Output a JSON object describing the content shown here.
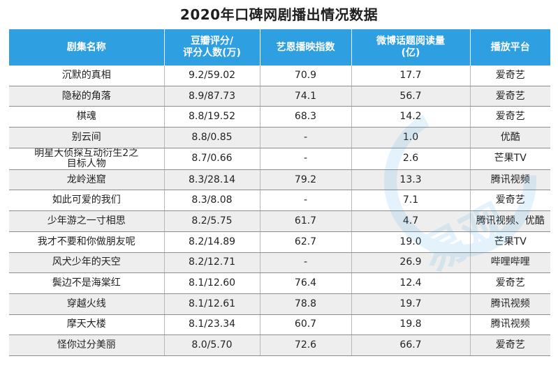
{
  "title": "2020年口碑网剧播出情况数据",
  "columns": [
    {
      "line1": "剧集名称",
      "line2": ""
    },
    {
      "line1": "豆瓣评分/",
      "line2": "评分人数(万)"
    },
    {
      "line1": "艺恩播映指数",
      "line2": ""
    },
    {
      "line1": "微博话题阅读量",
      "line2": "(亿)"
    },
    {
      "line1": "播放平台",
      "line2": ""
    }
  ],
  "rows": [
    {
      "name": "沉默的真相",
      "score": "9.2/59.02",
      "iqiyi": "70.9",
      "weibo": "17.7",
      "platform": "爱奇艺"
    },
    {
      "name": "隐秘的角落",
      "score": "8.9/87.73",
      "iqiyi": "74.1",
      "weibo": "56.7",
      "platform": "爱奇艺"
    },
    {
      "name": "棋魂",
      "score": "8.8/19.52",
      "iqiyi": "68.3",
      "weibo": "14.2",
      "platform": "爱奇艺"
    },
    {
      "name": "别云间",
      "score": "8.8/0.85",
      "iqiyi": "-",
      "weibo": "1.0",
      "platform": "优酷"
    },
    {
      "name": "明星大侦探互动衍生2之目标人物",
      "name_line1": "明星大侦探互动衍生2之",
      "name_line2": "目标人物",
      "score": "8.7/0.66",
      "iqiyi": "-",
      "weibo": "2.6",
      "platform": "芒果TV"
    },
    {
      "name": "龙岭迷窟",
      "score": "8.3/28.14",
      "iqiyi": "79.2",
      "weibo": "13.3",
      "platform": "腾讯视频"
    },
    {
      "name": "如此可爱的我们",
      "score": "8.3/8.08",
      "iqiyi": "-",
      "weibo": "7.1",
      "platform": "爱奇艺"
    },
    {
      "name": "少年游之一寸相思",
      "score": "8.2/5.75",
      "iqiyi": "61.7",
      "weibo": "4.7",
      "platform": "腾讯视频、优酷"
    },
    {
      "name": "我才不要和你做朋友呢",
      "score": "8.2/14.89",
      "iqiyi": "62.7",
      "weibo": "19.0",
      "platform": "芒果TV"
    },
    {
      "name": "风犬少年的天空",
      "score": "8.2/12.71",
      "iqiyi": "-",
      "weibo": "26.9",
      "platform": "哔哩哔哩"
    },
    {
      "name": "鬓边不是海棠红",
      "score": "8.1/12.60",
      "iqiyi": "76.4",
      "weibo": "12.4",
      "platform": "爱奇艺"
    },
    {
      "name": "穿越火线",
      "score": "8.1/12.61",
      "iqiyi": "78.8",
      "weibo": "19.7",
      "platform": "腾讯视频"
    },
    {
      "name": "摩天大楼",
      "score": "8.1/23.34",
      "iqiyi": "60.7",
      "weibo": "19.8",
      "platform": "腾讯视频"
    },
    {
      "name": "怪你过分美丽",
      "score": "8.0/5.70",
      "iqiyi": "72.6",
      "weibo": "66.7",
      "platform": "爱奇艺"
    }
  ],
  "colors": {
    "header_bg": "#2e9fe1",
    "header_text": "#ffffff",
    "row_alt_bg": "#eeeeee",
    "grid_line": "#8d8d8d",
    "watermark": "#2e9fe1"
  },
  "watermark_text": "易观"
}
